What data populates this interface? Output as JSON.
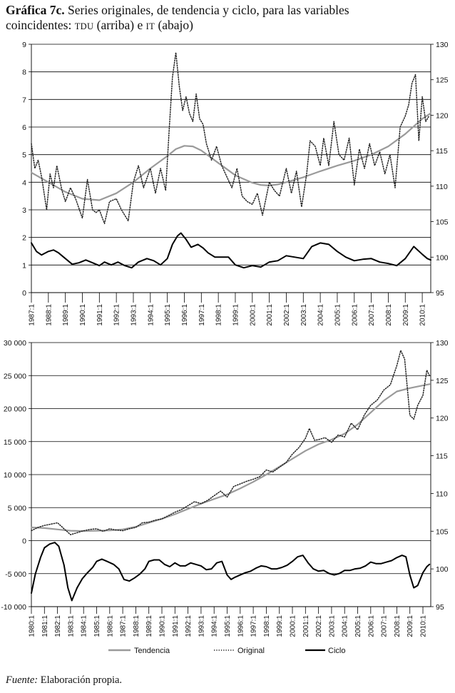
{
  "title": {
    "label": "Gráfica 7c.",
    "line1": "Series originales, de tendencia y ciclo, para las variables",
    "line2_a": "coincidentes: ",
    "var1": "TDU",
    "line2_b": " (arriba) e ",
    "var2": "IT",
    "line2_c": " (abajo)"
  },
  "legend": {
    "trend": "Tendencia",
    "original": "Original",
    "cycle": "Ciclo"
  },
  "source": {
    "label": "Fuente:",
    "text": " Elaboración propia."
  },
  "colors": {
    "trend": "#9a9a9a",
    "original": "#222222",
    "cycle": "#000000",
    "grid": "#000000"
  },
  "chart_data": [
    {
      "type": "line",
      "title": "TDU",
      "x_ticks": [
        "1987:1",
        "1988:1",
        "1989:1",
        "1990:1",
        "1991:1",
        "1992:1",
        "1993:1",
        "1994:1",
        "1995:1",
        "1996:1",
        "1997:1",
        "1998:1",
        "1999:1",
        "2000:1",
        "2001:1",
        "2002:1",
        "2003:1",
        "2004:1",
        "2005:1",
        "2006:1",
        "2007:1",
        "2008:1",
        "2009:1",
        "2010:1"
      ],
      "xlim": [
        1987.0,
        2010.5
      ],
      "ylim_left": [
        0,
        9
      ],
      "yticks_left": [
        "0",
        "1",
        "2",
        "3",
        "4",
        "5",
        "6",
        "7",
        "8",
        "9"
      ],
      "ylim_right": [
        95,
        130
      ],
      "yticks_right": [
        "95",
        "100",
        "105",
        "110",
        "115",
        "120",
        "125",
        "130"
      ],
      "grid": "horizontal",
      "series": [
        {
          "name": "Tendencia",
          "axis": "left",
          "x": [
            1987,
            1988,
            1989,
            1990,
            1991,
            1992,
            1993,
            1994,
            1995,
            1995.5,
            1996,
            1996.5,
            1997,
            1998,
            1999,
            2000,
            2000.5,
            2001,
            2001.5,
            2002,
            2003,
            2004,
            2005,
            2006,
            2007,
            2008,
            2009,
            2010,
            2010.5
          ],
          "y": [
            4.35,
            4.0,
            3.65,
            3.4,
            3.35,
            3.6,
            4.0,
            4.5,
            4.95,
            5.2,
            5.32,
            5.3,
            5.15,
            4.7,
            4.25,
            3.98,
            3.9,
            3.88,
            3.92,
            4.0,
            4.18,
            4.4,
            4.6,
            4.78,
            5.0,
            5.3,
            5.75,
            6.3,
            6.5
          ]
        },
        {
          "name": "Original",
          "axis": "left",
          "x": [
            1987,
            1987.2,
            1987.4,
            1987.6,
            1987.9,
            1988.1,
            1988.3,
            1988.5,
            1988.8,
            1989,
            1989.3,
            1989.6,
            1990,
            1990.3,
            1990.6,
            1990.8,
            1991,
            1991.3,
            1991.6,
            1992,
            1992.3,
            1992.7,
            1993,
            1993.3,
            1993.6,
            1994,
            1994.3,
            1994.6,
            1994.9,
            1995.1,
            1995.3,
            1995.5,
            1995.7,
            1995.9,
            1996.1,
            1996.3,
            1996.5,
            1996.7,
            1996.9,
            1997.1,
            1997.3,
            1997.6,
            1997.9,
            1998.2,
            1998.5,
            1998.8,
            1999.1,
            1999.4,
            1999.7,
            2000,
            2000.3,
            2000.6,
            2001,
            2001.3,
            2001.6,
            2002,
            2002.3,
            2002.6,
            2002.9,
            2003.2,
            2003.4,
            2003.7,
            2004,
            2004.2,
            2004.5,
            2004.8,
            2005.1,
            2005.4,
            2005.7,
            2006,
            2006.3,
            2006.6,
            2006.9,
            2007.2,
            2007.5,
            2007.8,
            2008.1,
            2008.4,
            2008.7,
            2009,
            2009.2,
            2009.4,
            2009.6,
            2009.8,
            2010,
            2010.2,
            2010.4
          ],
          "y": [
            5.4,
            4.5,
            4.8,
            4.2,
            3.0,
            4.3,
            3.8,
            4.6,
            3.7,
            3.3,
            3.8,
            3.4,
            2.7,
            4.1,
            3.0,
            2.9,
            3.0,
            2.5,
            3.3,
            3.4,
            3.0,
            2.6,
            4.0,
            4.6,
            3.8,
            4.5,
            3.6,
            4.5,
            3.7,
            5.8,
            7.8,
            8.7,
            7.5,
            6.6,
            7.1,
            6.5,
            6.2,
            7.2,
            6.3,
            6.1,
            5.4,
            4.8,
            5.3,
            4.6,
            4.2,
            3.8,
            4.5,
            3.5,
            3.3,
            3.2,
            3.6,
            2.8,
            4.0,
            3.7,
            3.5,
            4.5,
            3.6,
            4.4,
            3.1,
            4.3,
            5.5,
            5.3,
            4.6,
            5.6,
            4.6,
            6.2,
            5.0,
            4.8,
            5.6,
            3.9,
            5.2,
            4.5,
            5.4,
            4.6,
            5.1,
            4.3,
            5.0,
            3.8,
            6.0,
            6.4,
            6.8,
            7.6,
            7.9,
            5.5,
            7.1,
            6.2,
            6.4
          ]
        },
        {
          "name": "Ciclo",
          "axis": "right",
          "x": [
            1987,
            1987.3,
            1987.6,
            1988,
            1988.3,
            1988.6,
            1989,
            1989.4,
            1989.8,
            1990.2,
            1990.6,
            1991,
            1991.3,
            1991.7,
            1992.1,
            1992.5,
            1992.9,
            1993.3,
            1993.8,
            1994.2,
            1994.6,
            1995,
            1995.3,
            1995.6,
            1995.8,
            1996.1,
            1996.4,
            1996.8,
            1997.1,
            1997.4,
            1997.8,
            1998.2,
            1998.6,
            1999,
            1999.5,
            2000,
            2000.5,
            2001,
            2001.5,
            2002,
            2002.5,
            2003,
            2003.5,
            2004,
            2004.5,
            2005,
            2005.5,
            2006,
            2006.5,
            2007,
            2007.5,
            2008,
            2008.5,
            2009,
            2009.5,
            2010,
            2010.3,
            2010.5
          ],
          "y": [
            102.0,
            100.8,
            100.3,
            100.8,
            101.0,
            100.6,
            99.8,
            99.0,
            99.2,
            99.6,
            99.2,
            98.8,
            99.3,
            98.9,
            99.3,
            98.8,
            98.5,
            99.3,
            99.8,
            99.5,
            98.9,
            99.8,
            101.8,
            103.0,
            103.4,
            102.5,
            101.4,
            101.8,
            101.3,
            100.6,
            100.0,
            100.0,
            100.0,
            98.9,
            98.5,
            98.8,
            98.6,
            99.3,
            99.5,
            100.2,
            100.0,
            99.8,
            101.5,
            102.0,
            101.8,
            100.8,
            100.0,
            99.5,
            99.7,
            99.8,
            99.3,
            99.1,
            98.8,
            99.8,
            101.5,
            100.4,
            99.8,
            99.6
          ]
        }
      ]
    },
    {
      "type": "line",
      "title": "IT",
      "x_ticks": [
        "1980:1",
        "1981:1",
        "1982:1",
        "1983:1",
        "1984:1",
        "1985:1",
        "1986:1",
        "1987:1",
        "1988:1",
        "1989:1",
        "1990:1",
        "1991:1",
        "1992:1",
        "1993:1",
        "1994:1",
        "1995:1",
        "1996:1",
        "1997:1",
        "1998:1",
        "1999:1",
        "2000:1",
        "2001:1",
        "2002:1",
        "2003:1",
        "2004:1",
        "2005:1",
        "2006:1",
        "2007:1",
        "2008:1",
        "2009:1",
        "2010:1"
      ],
      "xlim": [
        1980.0,
        2010.6
      ],
      "ylim_left": [
        -10000,
        30000
      ],
      "yticks_left": [
        "-10 000",
        "-5 000",
        "0",
        "5 000",
        "10 000",
        "15 000",
        "20 000",
        "25 000",
        "30 000"
      ],
      "ylim_right": [
        95,
        130
      ],
      "yticks_right": [
        "95",
        "100",
        "105",
        "110",
        "115",
        "120",
        "125",
        "130"
      ],
      "grid": "horizontal",
      "series": [
        {
          "name": "Tendencia",
          "axis": "left",
          "x": [
            1980,
            1981,
            1982,
            1983,
            1984,
            1985,
            1986,
            1987,
            1988,
            1989,
            1990,
            1991,
            1992,
            1993,
            1994,
            1995,
            1996,
            1997,
            1998,
            1999,
            2000,
            2001,
            2002,
            2003,
            2004,
            2005,
            2006,
            2007,
            2008,
            2009,
            2010,
            2010.5
          ],
          "y": [
            2000,
            1900,
            1700,
            1500,
            1450,
            1500,
            1550,
            1700,
            2100,
            2700,
            3300,
            4000,
            4800,
            5600,
            6300,
            7000,
            7900,
            8900,
            10000,
            11200,
            12400,
            13600,
            14600,
            15300,
            16200,
            17600,
            19400,
            21200,
            22600,
            23100,
            23500,
            23700
          ]
        },
        {
          "name": "Original",
          "axis": "left",
          "x": [
            1980,
            1980.5,
            1981,
            1981.5,
            1982,
            1982.5,
            1983,
            1983.5,
            1984,
            1984.5,
            1985,
            1985.5,
            1986,
            1986.5,
            1987,
            1987.5,
            1988,
            1988.5,
            1989,
            1989.5,
            1990,
            1990.5,
            1991,
            1991.5,
            1992,
            1992.5,
            1993,
            1993.5,
            1994,
            1994.5,
            1995,
            1995.5,
            1996,
            1996.5,
            1997,
            1997.5,
            1998,
            1998.5,
            1999,
            1999.5,
            2000,
            2000.5,
            2001,
            2001.3,
            2001.7,
            2002,
            2002.5,
            2003,
            2003.5,
            2004,
            2004.5,
            2005,
            2005.5,
            2006,
            2006.5,
            2007,
            2007.5,
            2008,
            2008.3,
            2008.6,
            2009,
            2009.3,
            2009.6,
            2010,
            2010.3,
            2010.5
          ],
          "y": [
            1500,
            2000,
            2300,
            2500,
            2700,
            1800,
            900,
            1200,
            1500,
            1700,
            1800,
            1400,
            1800,
            1600,
            1500,
            1800,
            2000,
            2700,
            2800,
            3100,
            3300,
            3800,
            4300,
            4700,
            5300,
            5900,
            5600,
            6100,
            6800,
            7500,
            6600,
            8200,
            8600,
            9000,
            9300,
            9700,
            10700,
            10400,
            11100,
            11800,
            13100,
            14100,
            15500,
            17000,
            15200,
            15300,
            15600,
            14900,
            16000,
            15700,
            17800,
            16800,
            19000,
            20500,
            21300,
            22800,
            23600,
            26500,
            28800,
            27500,
            19000,
            18400,
            20500,
            22000,
            25800,
            25000
          ]
        },
        {
          "name": "Ciclo",
          "axis": "right",
          "x": [
            1980,
            1980.3,
            1980.7,
            1981,
            1981.4,
            1981.8,
            1982.1,
            1982.5,
            1982.8,
            1983.1,
            1983.5,
            1983.9,
            1984.3,
            1984.7,
            1985,
            1985.4,
            1985.8,
            1986.3,
            1986.7,
            1987.1,
            1987.5,
            1987.9,
            1988.3,
            1988.7,
            1989,
            1989.4,
            1989.8,
            1990.2,
            1990.6,
            1991,
            1991.4,
            1991.8,
            1992.2,
            1992.6,
            1993,
            1993.4,
            1993.8,
            1994.2,
            1994.6,
            1995,
            1995.3,
            1995.6,
            1996,
            1996.4,
            1996.8,
            1997.2,
            1997.6,
            1998,
            1998.4,
            1998.8,
            1999.2,
            1999.6,
            2000,
            2000.4,
            2000.8,
            2001.2,
            2001.6,
            2002,
            2002.4,
            2002.8,
            2003.2,
            2003.6,
            2004,
            2004.4,
            2004.8,
            2005.2,
            2005.6,
            2006,
            2006.4,
            2006.8,
            2007.2,
            2007.6,
            2008,
            2008.4,
            2008.7,
            2009,
            2009.3,
            2009.6,
            2010,
            2010.3,
            2010.5
          ],
          "y": [
            96.8,
            99.3,
            101.5,
            102.8,
            103.3,
            103.5,
            103.0,
            100.5,
            97.5,
            95.8,
            97.5,
            98.7,
            99.5,
            100.2,
            101.0,
            101.3,
            101.0,
            100.6,
            100.0,
            98.6,
            98.4,
            98.8,
            99.3,
            100.0,
            101.0,
            101.2,
            101.2,
            100.6,
            100.3,
            100.8,
            100.4,
            100.4,
            100.8,
            100.6,
            100.4,
            99.9,
            100.0,
            100.8,
            101.0,
            99.2,
            98.6,
            98.9,
            99.2,
            99.5,
            99.7,
            100.1,
            100.4,
            100.3,
            100.0,
            100.0,
            100.2,
            100.5,
            101.0,
            101.6,
            101.8,
            100.8,
            100.0,
            99.7,
            99.8,
            99.4,
            99.2,
            99.4,
            99.8,
            99.8,
            100.0,
            100.1,
            100.4,
            100.9,
            100.7,
            100.7,
            100.9,
            101.1,
            101.5,
            101.8,
            101.6,
            99.2,
            97.5,
            97.8,
            99.5,
            100.3,
            100.6
          ]
        }
      ]
    }
  ]
}
